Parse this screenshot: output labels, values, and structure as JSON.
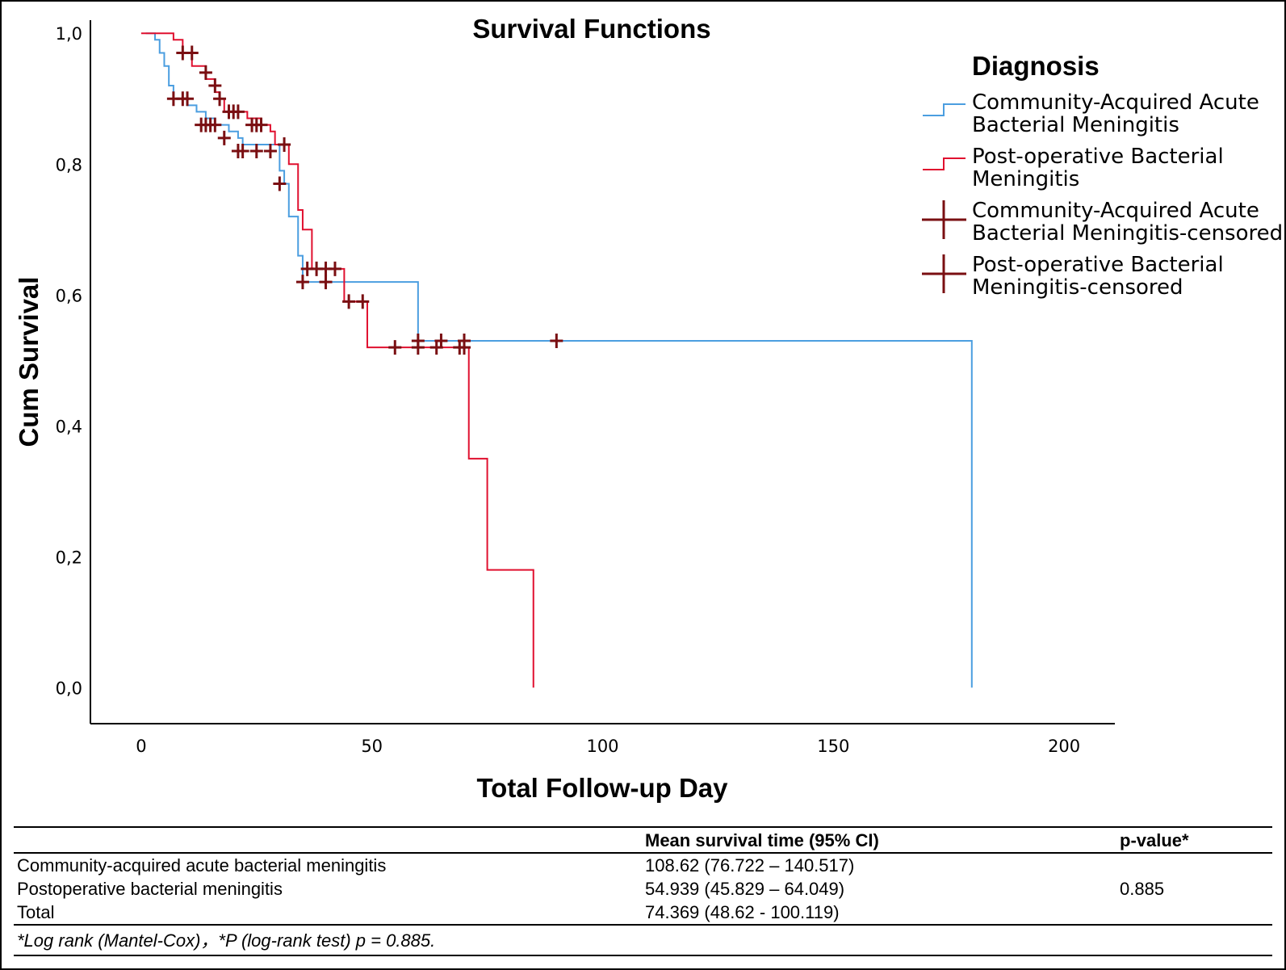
{
  "chart_data": {
    "type": "line",
    "subtype": "kaplan-meier-step",
    "title": "Survival Functions",
    "xlabel": "Total Follow-up Day",
    "ylabel": "Cum Survival",
    "xlim": [
      -11,
      211
    ],
    "ylim": [
      -0.055,
      1.02
    ],
    "xticks": [
      0,
      50,
      100,
      150,
      200
    ],
    "xtick_labels": [
      "0",
      "50",
      "100",
      "150",
      "200"
    ],
    "yticks": [
      0,
      0.2,
      0.4,
      0.6,
      0.8,
      1.0
    ],
    "ytick_labels": [
      "0,0",
      "0,2",
      "0,4",
      "0,6",
      "0,8",
      "1,0"
    ],
    "grid": false,
    "legend": {
      "title": "Diagnosis",
      "placement": "top-right",
      "entries": [
        {
          "line1": "Community-Acquired Acute",
          "line2": "Bacterial Meningitis",
          "kind": "line",
          "color": "#4b9ee0"
        },
        {
          "line1": "Post-operative Bacterial",
          "line2": "Meningitis",
          "kind": "line",
          "color": "#e0102f"
        },
        {
          "line1": "Community-Acquired Acute",
          "line2": "Bacterial Meningitis-censored",
          "kind": "marker",
          "color": "#7a0f12"
        },
        {
          "line1": "Post-operative Bacterial",
          "line2": "Meningitis-censored",
          "kind": "marker",
          "color": "#7a0f12"
        }
      ]
    },
    "series": [
      {
        "color": "#4b9ee0",
        "steps": [
          [
            1,
            1.0
          ],
          [
            3,
            0.99
          ],
          [
            4,
            0.97
          ],
          [
            5,
            0.95
          ],
          [
            6,
            0.92
          ],
          [
            7,
            0.9
          ],
          [
            10,
            0.89
          ],
          [
            12,
            0.88
          ],
          [
            14,
            0.87
          ],
          [
            16,
            0.86
          ],
          [
            19,
            0.85
          ],
          [
            21,
            0.84
          ],
          [
            22,
            0.83
          ],
          [
            30,
            0.79
          ],
          [
            31,
            0.77
          ],
          [
            32,
            0.72
          ],
          [
            34,
            0.66
          ],
          [
            35,
            0.62
          ],
          [
            60,
            0.53
          ],
          [
            180,
            0.0
          ]
        ],
        "end": 180,
        "censored": [
          [
            7,
            0.9
          ],
          [
            9,
            0.9
          ],
          [
            10,
            0.9
          ],
          [
            13,
            0.86
          ],
          [
            14,
            0.86
          ],
          [
            15,
            0.86
          ],
          [
            16,
            0.86
          ],
          [
            18,
            0.84
          ],
          [
            21,
            0.82
          ],
          [
            22,
            0.82
          ],
          [
            25,
            0.82
          ],
          [
            28,
            0.82
          ],
          [
            30,
            0.77
          ],
          [
            35,
            0.62
          ],
          [
            40,
            0.62
          ],
          [
            60,
            0.53
          ],
          [
            65,
            0.53
          ],
          [
            70,
            0.53
          ],
          [
            90,
            0.53
          ]
        ]
      },
      {
        "color": "#e0102f",
        "steps": [
          [
            0,
            1.0
          ],
          [
            7,
            0.99
          ],
          [
            9,
            0.97
          ],
          [
            11,
            0.95
          ],
          [
            14,
            0.93
          ],
          [
            16,
            0.91
          ],
          [
            17,
            0.9
          ],
          [
            18,
            0.88
          ],
          [
            23,
            0.87
          ],
          [
            26,
            0.86
          ],
          [
            28,
            0.85
          ],
          [
            29,
            0.83
          ],
          [
            32,
            0.8
          ],
          [
            34,
            0.73
          ],
          [
            35,
            0.7
          ],
          [
            37,
            0.64
          ],
          [
            44,
            0.59
          ],
          [
            49,
            0.52
          ],
          [
            71,
            0.35
          ],
          [
            75,
            0.18
          ],
          [
            85,
            0.0
          ]
        ],
        "end": 85,
        "censored": [
          [
            9,
            0.97
          ],
          [
            11,
            0.97
          ],
          [
            14,
            0.94
          ],
          [
            16,
            0.92
          ],
          [
            17,
            0.9
          ],
          [
            19,
            0.88
          ],
          [
            20,
            0.88
          ],
          [
            21,
            0.88
          ],
          [
            24,
            0.86
          ],
          [
            25,
            0.86
          ],
          [
            26,
            0.86
          ],
          [
            31,
            0.83
          ],
          [
            36,
            0.64
          ],
          [
            38,
            0.64
          ],
          [
            40,
            0.64
          ],
          [
            42,
            0.64
          ],
          [
            45,
            0.59
          ],
          [
            48,
            0.59
          ],
          [
            55,
            0.52
          ],
          [
            60,
            0.52
          ],
          [
            64,
            0.52
          ],
          [
            69,
            0.52
          ],
          [
            70,
            0.52
          ]
        ]
      }
    ]
  },
  "table": {
    "headers": [
      "",
      "Mean survival time (95% CI)",
      "p-value*"
    ],
    "rows": [
      {
        "label": "Community-acquired acute bacterial meningitis",
        "mean": "108.62 (76.722 – 140.517)",
        "p": ""
      },
      {
        "label": "Postoperative bacterial meningitis",
        "mean": "54.939 (45.829 – 64.049)",
        "p": "0.885"
      },
      {
        "label": "Total",
        "mean": "74.369 (48.62 - 100.119)",
        "p": ""
      }
    ],
    "footnote": "*Log rank (Mantel-Cox)，*P (log-rank test) p = 0.885."
  }
}
